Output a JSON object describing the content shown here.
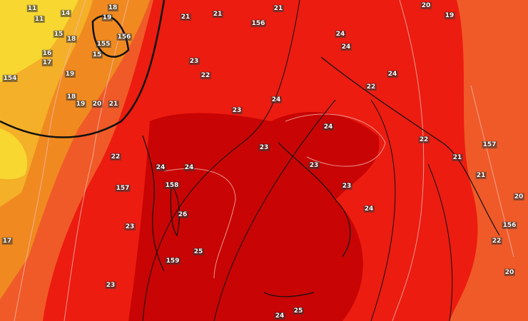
{
  "map": {
    "colors": {
      "yellow": "#f8d830",
      "light_orange": "#f4b028",
      "orange": "#f08a20",
      "red_orange": "#f05a28",
      "red": "#ec1c10",
      "dark_red": "#c80404",
      "isotherm_line": "#f4b8b0",
      "isobar_line": "#111111"
    },
    "labels": [
      "11",
      "11",
      "14",
      "15",
      "18",
      "16",
      "17",
      "154",
      "19",
      "18",
      "19",
      "20",
      "21",
      "18",
      "19",
      "155",
      "156",
      "15",
      "21",
      "21",
      "156",
      "21",
      "20",
      "19",
      "24",
      "24",
      "23",
      "22",
      "24",
      "22",
      "23",
      "24",
      "24",
      "23",
      "22",
      "22",
      "157",
      "21",
      "24",
      "24",
      "23",
      "21",
      "157",
      "158",
      "23",
      "20",
      "24",
      "26",
      "23",
      "22",
      "156",
      "17",
      "25",
      "159",
      "23",
      "20",
      "24",
      "25"
    ]
  }
}
